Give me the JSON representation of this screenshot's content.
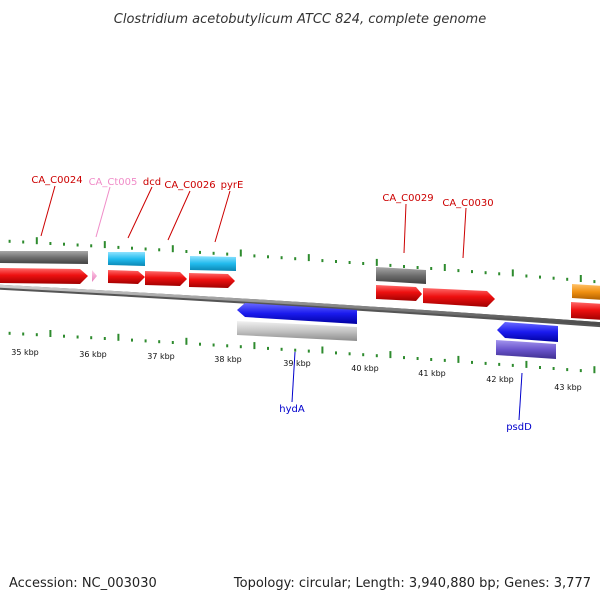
{
  "title": "Clostridium acetobutylicum ATCC 824, complete genome",
  "footer": {
    "accession": "Accession: NC_003030",
    "summary": "Topology: circular; Length: 3,940,880 bp; Genes: 3,777"
  },
  "colors": {
    "background": "#ffffff",
    "backbone": "#8a8a8a",
    "tick": "#2e8b2e",
    "label_red": "#cc0000",
    "label_pink": "#f08cc8",
    "label_blue": "#0000cc"
  },
  "scale_labels": [
    "35 kbp",
    "36 kbp",
    "37 kbp",
    "38 kbp",
    "39 kbp",
    "40 kbp",
    "41 kbp",
    "42 kbp",
    "43 kbp"
  ],
  "gene_labels": [
    {
      "text": "CA_C0024",
      "color": "#cc0000"
    },
    {
      "text": "CA_Ct005",
      "color": "#f08cc8"
    },
    {
      "text": "dcd",
      "color": "#cc0000"
    },
    {
      "text": "CA_C0026",
      "color": "#cc0000"
    },
    {
      "text": "pyrE",
      "color": "#cc0000"
    },
    {
      "text": "CA_C0029",
      "color": "#cc0000"
    },
    {
      "text": "CA_C0030",
      "color": "#cc0000"
    },
    {
      "text": "hydA",
      "color": "#0000cc"
    },
    {
      "text": "psdD",
      "color": "#0000cc"
    }
  ],
  "feature_colors": {
    "forward_cds": "#e8141e",
    "forward_gene": "#6e6e6e",
    "forward_blue_gene": "#22bbee",
    "trna": "#f5a3d3",
    "reverse_cds": "#1a1aee",
    "reverse_gene": "#bdbdbd",
    "reverse_purple": "#6a55cc",
    "orange_gene": "#f09010"
  }
}
